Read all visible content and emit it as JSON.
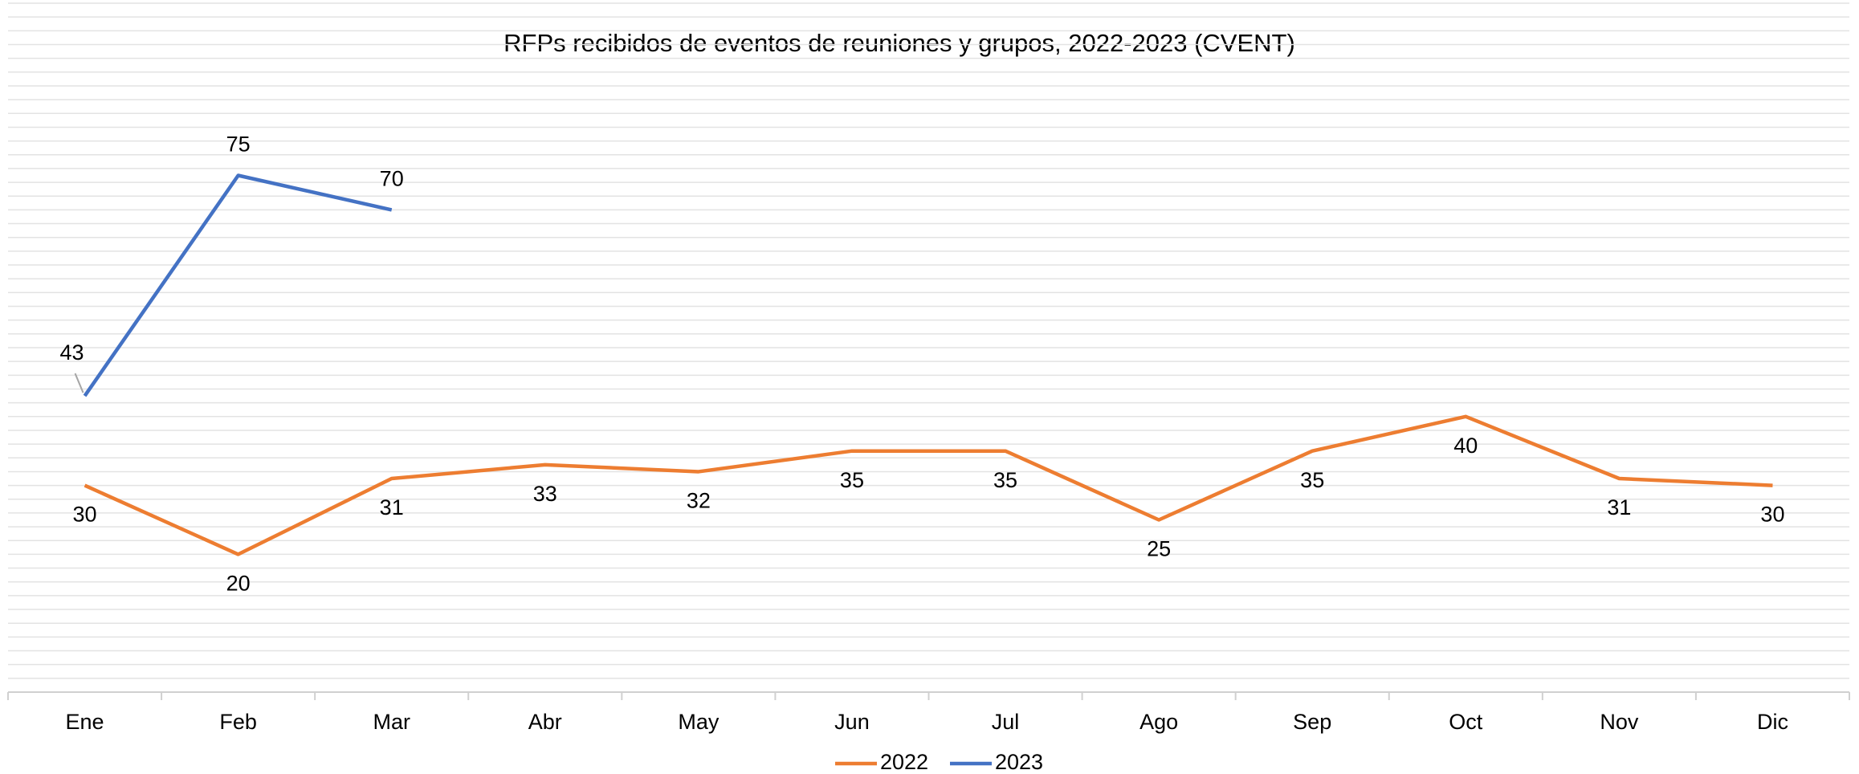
{
  "chart_data": {
    "type": "line",
    "title": "RFPs recibidos de eventos de reuniones y grupos, 2022-2023  (CVENT)",
    "categories": [
      "Ene",
      "Feb",
      "Mar",
      "Abr",
      "May",
      "Jun",
      "Jul",
      "Ago",
      "Sep",
      "Oct",
      "Nov",
      "Dic"
    ],
    "series": [
      {
        "name": "2022",
        "color": "#ED7D31",
        "values": [
          30,
          20,
          31,
          33,
          32,
          35,
          35,
          25,
          35,
          40,
          31,
          30
        ]
      },
      {
        "name": "2023",
        "color": "#4472C4",
        "values": [
          43,
          75,
          70,
          null,
          null,
          null,
          null,
          null,
          null,
          null,
          null,
          null
        ]
      }
    ],
    "ylim": [
      0,
      100
    ],
    "yticks": [
      0,
      2,
      4,
      6,
      8,
      10,
      12,
      14,
      16,
      18,
      20,
      22,
      24,
      26,
      28,
      30,
      32,
      34,
      36,
      38,
      40,
      42,
      44,
      46,
      48,
      50,
      52,
      54,
      56,
      58,
      60,
      62,
      64,
      66,
      68,
      70,
      72,
      74,
      76,
      78,
      80,
      82,
      84,
      86,
      88,
      90,
      92,
      94,
      96,
      98,
      100
    ],
    "grid": true,
    "legend": "bottom"
  }
}
